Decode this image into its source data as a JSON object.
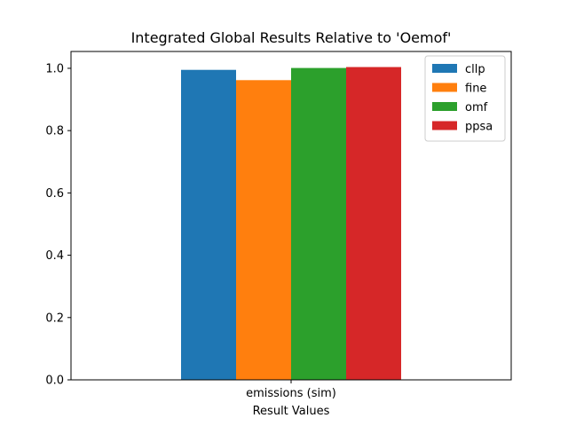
{
  "chart_data": {
    "type": "bar",
    "title": "Integrated Global Results Relative to 'Oemof'",
    "xlabel": "Result Values",
    "ylabel": "",
    "categories": [
      "emissions (sim)"
    ],
    "series": [
      {
        "name": "cllp",
        "values": [
          0.995
        ],
        "color": "#1f77b4"
      },
      {
        "name": "fine",
        "values": [
          0.962
        ],
        "color": "#ff7f0e"
      },
      {
        "name": "omf",
        "values": [
          1.001
        ],
        "color": "#2ca02c"
      },
      {
        "name": "ppsa",
        "values": [
          1.004
        ],
        "color": "#d62728"
      }
    ],
    "ylim": [
      0,
      1.054
    ],
    "yticks": [
      "0.0",
      "0.2",
      "0.4",
      "0.6",
      "0.8",
      "1.0"
    ],
    "grid": false,
    "legend_position": "top-right"
  }
}
